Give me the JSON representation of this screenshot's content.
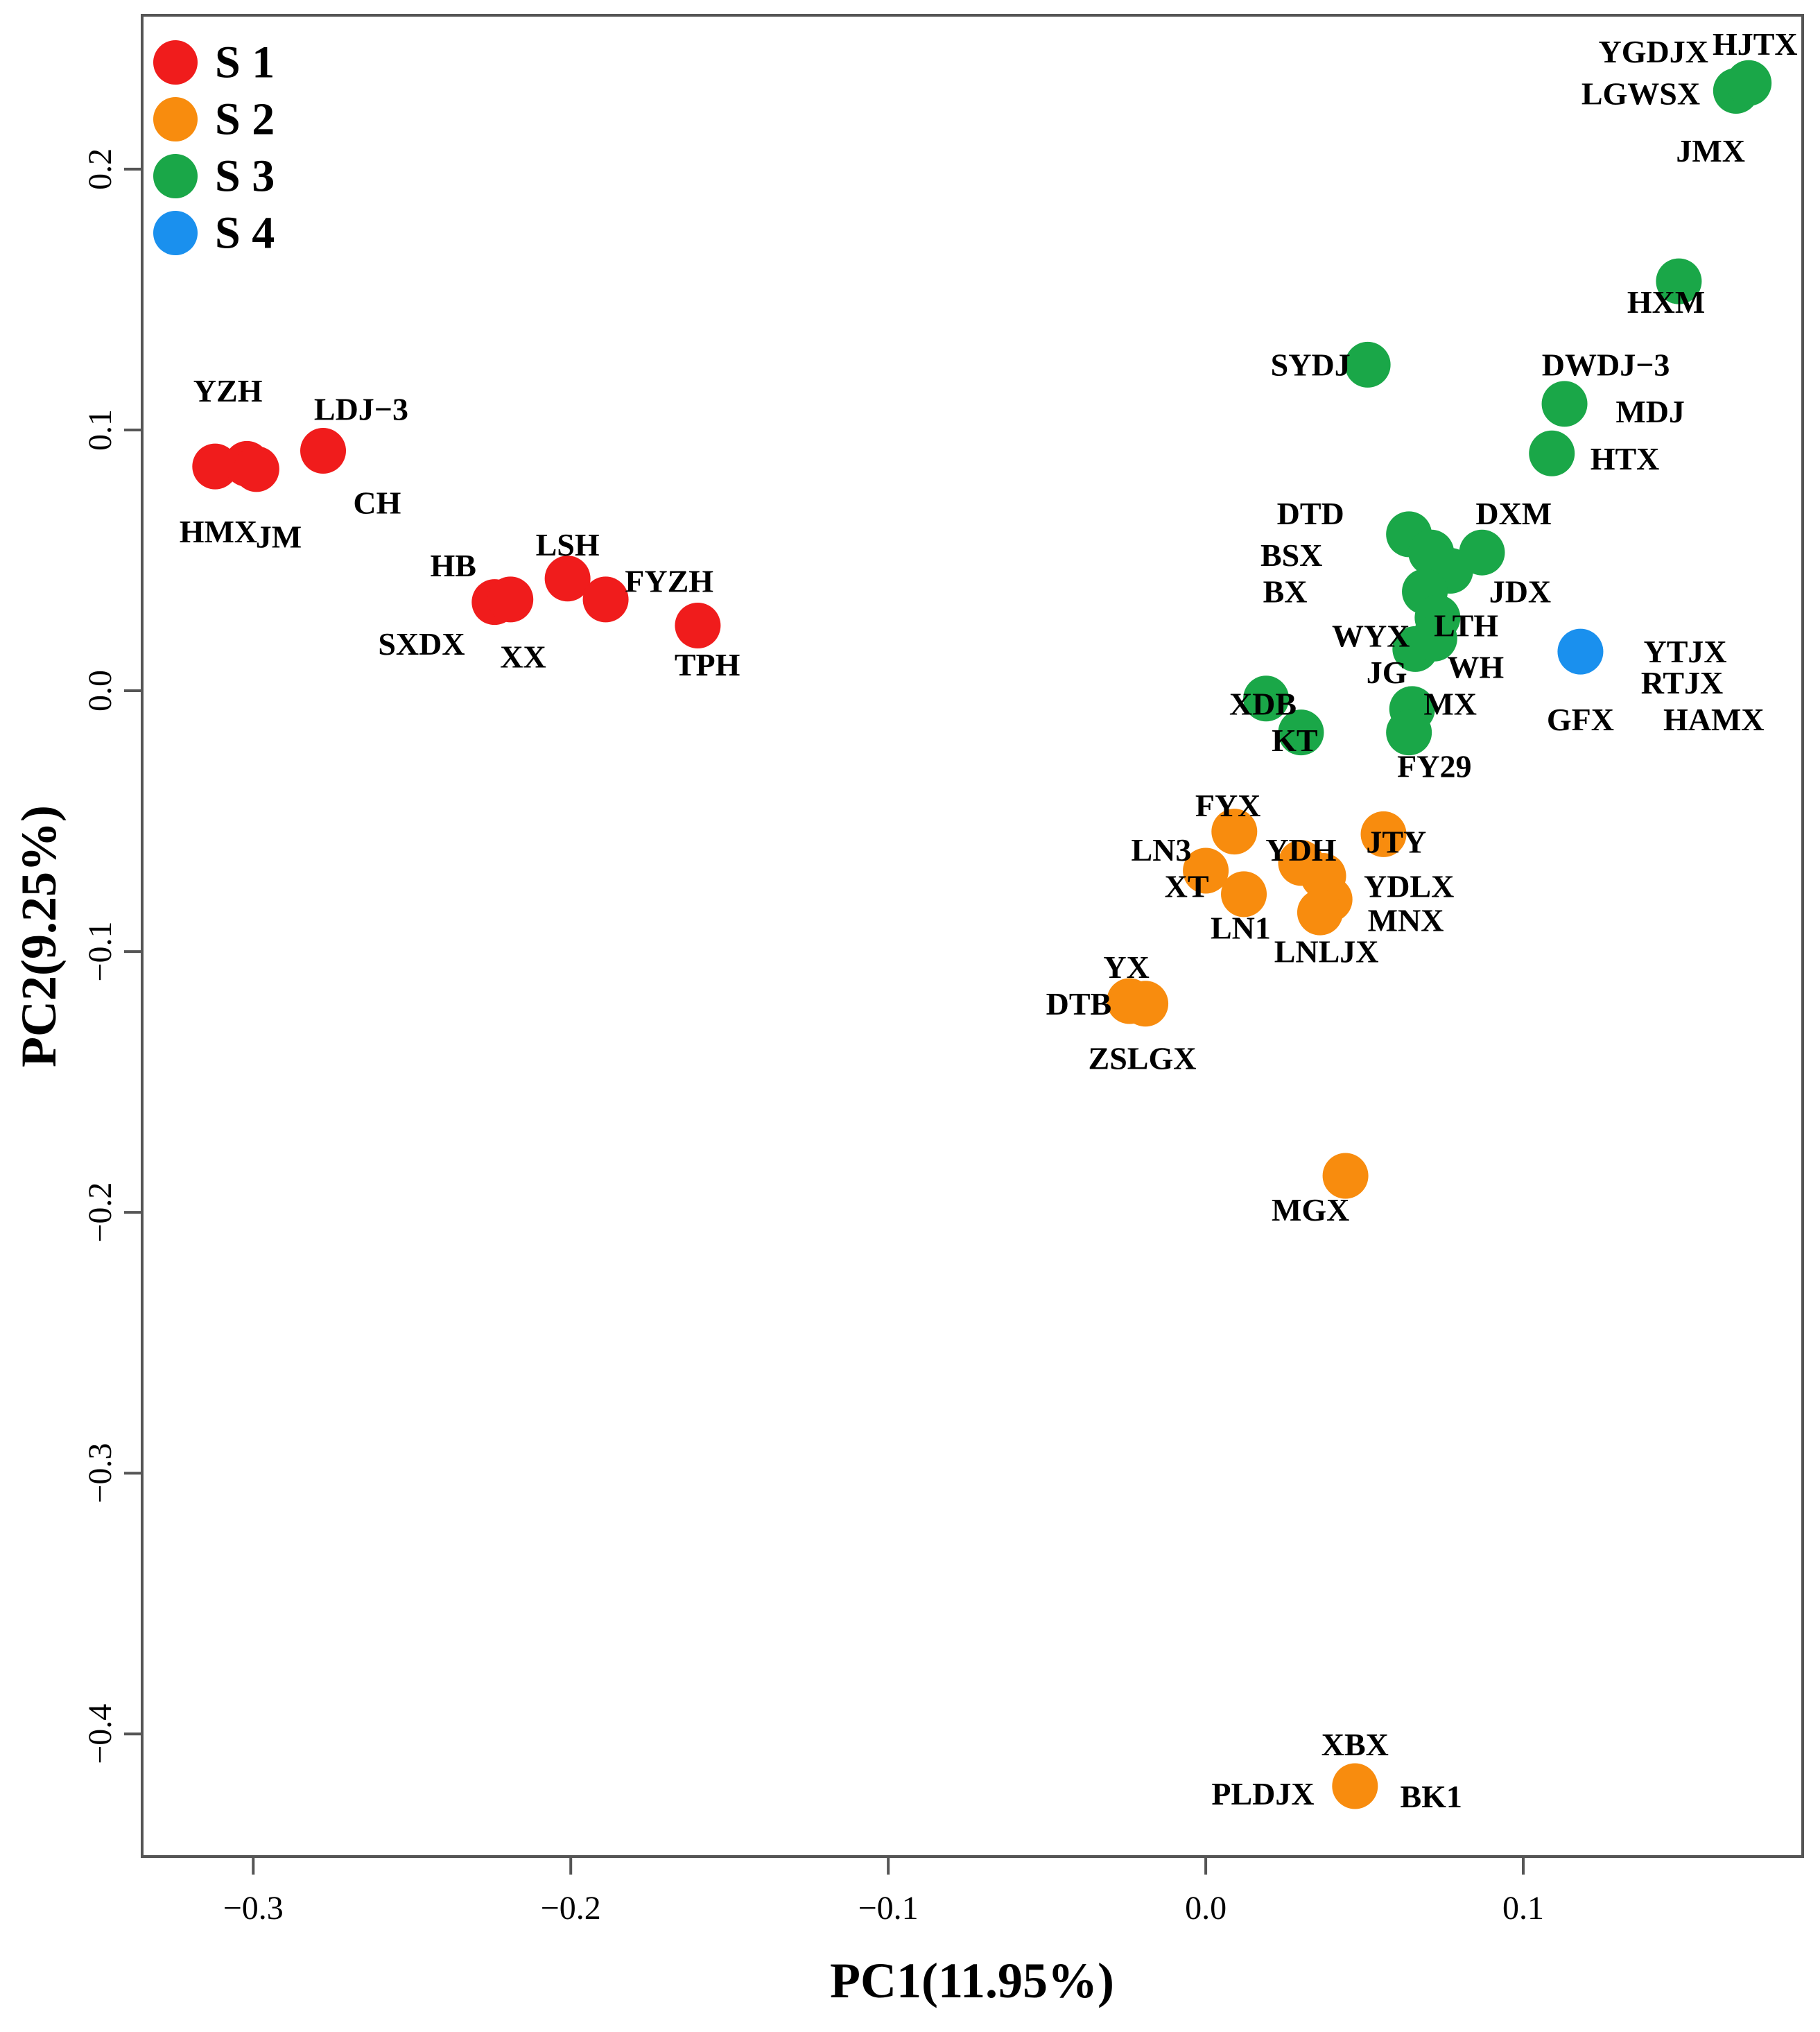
{
  "chart_data": {
    "type": "scatter",
    "title": "",
    "xlabel": "PC1(11.95%)",
    "ylabel": "PC2(9.25%)",
    "xlim": [
      -0.335,
      0.188
    ],
    "ylim": [
      -0.447,
      0.259
    ],
    "xticks": [
      -0.3,
      -0.2,
      -0.1,
      0.0,
      0.1
    ],
    "xtick_labels": [
      "−0.3",
      "−0.2",
      "−0.1",
      "0.0",
      "0.1"
    ],
    "yticks": [
      -0.4,
      -0.3,
      -0.2,
      -0.1,
      0.0,
      0.1,
      0.2
    ],
    "ytick_labels": [
      "−0.4",
      "−0.3",
      "−0.2",
      "−0.1",
      "0.0",
      "0.1",
      "0.2"
    ],
    "grid": false,
    "legend_position": "top-left",
    "groups": [
      {
        "name": "S 1",
        "color": "#f01c1c"
      },
      {
        "name": "S 2",
        "color": "#f88c0e"
      },
      {
        "name": "S 3",
        "color": "#1aa748"
      },
      {
        "name": "S 4",
        "color": "#1a90ee"
      }
    ],
    "points": [
      {
        "x": -0.312,
        "y": 0.086,
        "group": "S 1"
      },
      {
        "x": -0.302,
        "y": 0.087,
        "group": "S 1"
      },
      {
        "x": -0.299,
        "y": 0.085,
        "group": "S 1"
      },
      {
        "x": -0.278,
        "y": 0.092,
        "group": "S 1"
      },
      {
        "x": -0.224,
        "y": 0.034,
        "group": "S 1"
      },
      {
        "x": -0.219,
        "y": 0.035,
        "group": "S 1"
      },
      {
        "x": -0.201,
        "y": 0.043,
        "group": "S 1"
      },
      {
        "x": -0.189,
        "y": 0.035,
        "group": "S 1"
      },
      {
        "x": -0.16,
        "y": 0.025,
        "group": "S 1"
      },
      {
        "x": 0.009,
        "y": -0.054,
        "group": "S 2"
      },
      {
        "x": 0.056,
        "y": -0.055,
        "group": "S 2"
      },
      {
        "x": 0.0,
        "y": -0.069,
        "group": "S 2"
      },
      {
        "x": 0.012,
        "y": -0.078,
        "group": "S 2"
      },
      {
        "x": 0.03,
        "y": -0.066,
        "group": "S 2"
      },
      {
        "x": 0.037,
        "y": -0.071,
        "group": "S 2"
      },
      {
        "x": 0.039,
        "y": -0.08,
        "group": "S 2"
      },
      {
        "x": 0.036,
        "y": -0.085,
        "group": "S 2"
      },
      {
        "x": -0.024,
        "y": -0.119,
        "group": "S 2"
      },
      {
        "x": -0.019,
        "y": -0.12,
        "group": "S 2"
      },
      {
        "x": 0.044,
        "y": -0.186,
        "group": "S 2"
      },
      {
        "x": 0.047,
        "y": -0.42,
        "group": "S 2"
      },
      {
        "x": 0.167,
        "y": 0.23,
        "group": "S 3"
      },
      {
        "x": 0.171,
        "y": 0.233,
        "group": "S 3"
      },
      {
        "x": 0.149,
        "y": 0.157,
        "group": "S 3"
      },
      {
        "x": 0.051,
        "y": 0.125,
        "group": "S 3"
      },
      {
        "x": 0.113,
        "y": 0.11,
        "group": "S 3"
      },
      {
        "x": 0.109,
        "y": 0.091,
        "group": "S 3"
      },
      {
        "x": 0.064,
        "y": 0.06,
        "group": "S 3"
      },
      {
        "x": 0.071,
        "y": 0.053,
        "group": "S 3"
      },
      {
        "x": 0.087,
        "y": 0.053,
        "group": "S 3"
      },
      {
        "x": 0.077,
        "y": 0.046,
        "group": "S 3"
      },
      {
        "x": 0.069,
        "y": 0.038,
        "group": "S 3"
      },
      {
        "x": 0.073,
        "y": 0.028,
        "group": "S 3"
      },
      {
        "x": 0.066,
        "y": 0.016,
        "group": "S 3"
      },
      {
        "x": 0.072,
        "y": 0.02,
        "group": "S 3"
      },
      {
        "x": 0.019,
        "y": -0.003,
        "group": "S 3"
      },
      {
        "x": 0.03,
        "y": -0.016,
        "group": "S 3"
      },
      {
        "x": 0.065,
        "y": -0.007,
        "group": "S 3"
      },
      {
        "x": 0.064,
        "y": -0.016,
        "group": "S 3"
      },
      {
        "x": 0.118,
        "y": 0.015,
        "group": "S 4"
      }
    ],
    "annotations": [
      {
        "text": "YGDJX",
        "x": 0.141,
        "y": 0.245
      },
      {
        "text": "HJTX",
        "x": 0.173,
        "y": 0.248
      },
      {
        "text": "LGWSX",
        "x": 0.137,
        "y": 0.229
      },
      {
        "text": "JMX",
        "x": 0.159,
        "y": 0.207
      },
      {
        "text": "HXM",
        "x": 0.145,
        "y": 0.149
      },
      {
        "text": "SYDJ",
        "x": 0.033,
        "y": 0.125
      },
      {
        "text": "DWDJ−3",
        "x": 0.126,
        "y": 0.125
      },
      {
        "text": "MDJ",
        "x": 0.14,
        "y": 0.107
      },
      {
        "text": "HTX",
        "x": 0.132,
        "y": 0.089
      },
      {
        "text": "YZH",
        "x": -0.308,
        "y": 0.115
      },
      {
        "text": "LDJ−3",
        "x": -0.266,
        "y": 0.108
      },
      {
        "text": "CH",
        "x": -0.261,
        "y": 0.072
      },
      {
        "text": "HMX",
        "x": -0.311,
        "y": 0.061
      },
      {
        "text": "JM",
        "x": -0.292,
        "y": 0.059
      },
      {
        "text": "LSH",
        "x": -0.201,
        "y": 0.056
      },
      {
        "text": "HB",
        "x": -0.237,
        "y": 0.048
      },
      {
        "text": "FYZH",
        "x": -0.169,
        "y": 0.042
      },
      {
        "text": "SXDX",
        "x": -0.247,
        "y": 0.018
      },
      {
        "text": "XX",
        "x": -0.215,
        "y": 0.013
      },
      {
        "text": "TPH",
        "x": -0.157,
        "y": 0.01
      },
      {
        "text": "DTD",
        "x": 0.033,
        "y": 0.068
      },
      {
        "text": "DXM",
        "x": 0.097,
        "y": 0.068
      },
      {
        "text": "BSX",
        "x": 0.027,
        "y": 0.052
      },
      {
        "text": "BX",
        "x": 0.025,
        "y": 0.038
      },
      {
        "text": "JDX",
        "x": 0.099,
        "y": 0.038
      },
      {
        "text": "WYX",
        "x": 0.052,
        "y": 0.021
      },
      {
        "text": "LTH",
        "x": 0.082,
        "y": 0.025
      },
      {
        "text": "YTJX",
        "x": 0.151,
        "y": 0.015
      },
      {
        "text": "JG",
        "x": 0.057,
        "y": 0.007
      },
      {
        "text": "WH",
        "x": 0.085,
        "y": 0.009
      },
      {
        "text": "RTJX",
        "x": 0.15,
        "y": 0.003
      },
      {
        "text": "XDB",
        "x": 0.018,
        "y": -0.005
      },
      {
        "text": "MX",
        "x": 0.077,
        "y": -0.005
      },
      {
        "text": "GFX",
        "x": 0.118,
        "y": -0.011
      },
      {
        "text": "HAMX",
        "x": 0.16,
        "y": -0.011
      },
      {
        "text": "KT",
        "x": 0.028,
        "y": -0.019
      },
      {
        "text": "FY29",
        "x": 0.072,
        "y": -0.029
      },
      {
        "text": "FYX",
        "x": 0.007,
        "y": -0.044
      },
      {
        "text": "JTY",
        "x": 0.06,
        "y": -0.058
      },
      {
        "text": "LN3",
        "x": -0.014,
        "y": -0.061
      },
      {
        "text": "YDH",
        "x": 0.03,
        "y": -0.061
      },
      {
        "text": "XT",
        "x": -0.006,
        "y": -0.075
      },
      {
        "text": "YDLX",
        "x": 0.064,
        "y": -0.075
      },
      {
        "text": "MNX",
        "x": 0.063,
        "y": -0.088
      },
      {
        "text": "LN1",
        "x": 0.011,
        "y": -0.091
      },
      {
        "text": "LNLJX",
        "x": 0.038,
        "y": -0.1
      },
      {
        "text": "YX",
        "x": -0.025,
        "y": -0.106
      },
      {
        "text": "DTB",
        "x": -0.04,
        "y": -0.12
      },
      {
        "text": "ZSLGX",
        "x": -0.02,
        "y": -0.141
      },
      {
        "text": "MGX",
        "x": 0.033,
        "y": -0.199
      },
      {
        "text": "XBX",
        "x": 0.047,
        "y": -0.404
      },
      {
        "text": "PLDJX",
        "x": 0.018,
        "y": -0.423
      },
      {
        "text": "BK1",
        "x": 0.071,
        "y": -0.424
      }
    ]
  }
}
